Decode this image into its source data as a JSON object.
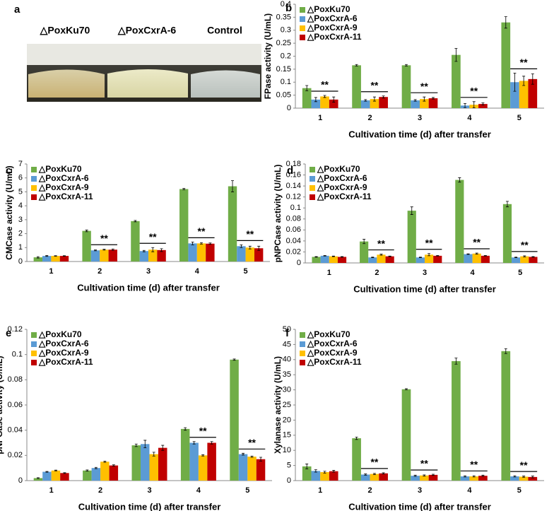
{
  "panel_a": {
    "panel": "a",
    "labels": [
      "△PoxKu70",
      "△PoxCxrA-6",
      "Control"
    ]
  },
  "chart_data": [
    {
      "type": "bar",
      "panel": "b",
      "y_label": "FPase activity (U/mL)",
      "x_label": "Cultivation time (d) after transfer",
      "categories": [
        "1",
        "2",
        "3",
        "4",
        "5"
      ],
      "ylim": [
        0,
        0.4
      ],
      "yticks": [
        0,
        0.05,
        0.1,
        0.15,
        0.2,
        0.25,
        0.3,
        0.35,
        0.4
      ],
      "legend": "upper left",
      "series": [
        {
          "name": "△PoxKu70",
          "color": "#70ad47",
          "values": [
            0.077,
            0.165,
            0.165,
            0.205,
            0.33
          ],
          "errors": [
            0.01,
            0.003,
            0.003,
            0.025,
            0.022
          ]
        },
        {
          "name": "△PoxCxrA-6",
          "color": "#5b9bd5",
          "values": [
            0.033,
            0.03,
            0.03,
            0.01,
            0.1
          ],
          "errors": [
            0.008,
            0.003,
            0.003,
            0.008,
            0.035
          ]
        },
        {
          "name": "△PoxCxrA-9",
          "color": "#ffc000",
          "values": [
            0.045,
            0.035,
            0.035,
            0.013,
            0.105
          ],
          "errors": [
            0.004,
            0.008,
            0.008,
            0.012,
            0.018
          ]
        },
        {
          "name": "△PoxCxrA-11",
          "color": "#c00000",
          "values": [
            0.033,
            0.043,
            0.038,
            0.016,
            0.112
          ],
          "errors": [
            0.01,
            0.004,
            0.003,
            0.004,
            0.02
          ]
        }
      ],
      "significance": [
        "**",
        "**",
        "**",
        "**",
        "**"
      ]
    },
    {
      "type": "bar",
      "panel": "c",
      "y_label": "CMCase activity (U/mL)",
      "x_label": "Cultivation time (d) after transfer",
      "categories": [
        "1",
        "2",
        "3",
        "4",
        "5"
      ],
      "ylim": [
        0,
        7
      ],
      "yticks": [
        0,
        1,
        2,
        3,
        4,
        5,
        6,
        7
      ],
      "legend": "upper left",
      "series": [
        {
          "name": "△PoxKu70",
          "color": "#70ad47",
          "values": [
            0.3,
            2.2,
            2.9,
            5.2,
            5.4
          ],
          "errors": [
            0.05,
            0.06,
            0.05,
            0.05,
            0.4
          ]
        },
        {
          "name": "△PoxCxrA-6",
          "color": "#5b9bd5",
          "values": [
            0.4,
            0.8,
            0.75,
            1.3,
            1.1
          ],
          "errors": [
            0.03,
            0.03,
            0.05,
            0.1,
            0.1
          ]
        },
        {
          "name": "△PoxCxrA-9",
          "color": "#ffc000",
          "values": [
            0.4,
            0.85,
            0.85,
            1.3,
            1.0
          ],
          "errors": [
            0.02,
            0.03,
            0.15,
            0.05,
            0.1
          ]
        },
        {
          "name": "△PoxCxrA-11",
          "color": "#c00000",
          "values": [
            0.4,
            0.85,
            0.82,
            1.28,
            0.95
          ],
          "errors": [
            0.02,
            0.05,
            0.1,
            0.05,
            0.15
          ]
        }
      ],
      "significance": [
        null,
        "**",
        "**",
        "**",
        "**"
      ]
    },
    {
      "type": "bar",
      "panel": "d",
      "y_label": "pNPCase activity (U/mL)",
      "x_label": "Cultivation time (d) after transfer",
      "categories": [
        "1",
        "2",
        "3",
        "4",
        "5"
      ],
      "ylim": [
        0,
        0.18
      ],
      "yticks": [
        0,
        0.02,
        0.04,
        0.06,
        0.08,
        0.1,
        0.12,
        0.14,
        0.16,
        0.18
      ],
      "legend": "upper left",
      "series": [
        {
          "name": "△PoxKu70",
          "color": "#70ad47",
          "values": [
            0.011,
            0.039,
            0.095,
            0.151,
            0.107
          ],
          "errors": [
            0.0005,
            0.004,
            0.007,
            0.004,
            0.005
          ]
        },
        {
          "name": "△PoxCxrA-6",
          "color": "#5b9bd5",
          "values": [
            0.013,
            0.01,
            0.01,
            0.016,
            0.01
          ],
          "errors": [
            0.0005,
            0.0005,
            0.0005,
            0.0005,
            0.0005
          ]
        },
        {
          "name": "△PoxCxrA-9",
          "color": "#ffc000",
          "values": [
            0.012,
            0.015,
            0.015,
            0.017,
            0.012
          ],
          "errors": [
            0.0005,
            0.001,
            0.002,
            0.001,
            0.001
          ]
        },
        {
          "name": "△PoxCxrA-11",
          "color": "#c00000",
          "values": [
            0.011,
            0.012,
            0.013,
            0.013,
            0.011
          ],
          "errors": [
            0.0005,
            0.0005,
            0.0005,
            0.0005,
            0.0005
          ]
        }
      ],
      "significance": [
        null,
        "**",
        "**",
        "**",
        "**"
      ]
    },
    {
      "type": "bar",
      "panel": "e",
      "y_label": "pNPGase activity (U/mL)",
      "x_label": "Cultivation time (d) after transfer",
      "categories": [
        "1",
        "2",
        "3",
        "4",
        "5"
      ],
      "ylim": [
        0,
        0.12
      ],
      "yticks": [
        0,
        0.02,
        0.04,
        0.06,
        0.08,
        0.1,
        0.12
      ],
      "legend": "upper left",
      "series": [
        {
          "name": "△PoxKu70",
          "color": "#70ad47",
          "values": [
            0.002,
            0.008,
            0.028,
            0.041,
            0.096
          ],
          "errors": [
            0.0003,
            0.0005,
            0.001,
            0.001,
            0.0005
          ]
        },
        {
          "name": "△PoxCxrA-6",
          "color": "#5b9bd5",
          "values": [
            0.007,
            0.01,
            0.029,
            0.03,
            0.021
          ],
          "errors": [
            0.0003,
            0.0005,
            0.003,
            0.001,
            0.0007
          ]
        },
        {
          "name": "△PoxCxrA-9",
          "color": "#ffc000",
          "values": [
            0.008,
            0.015,
            0.021,
            0.02,
            0.019
          ],
          "errors": [
            0.0003,
            0.0005,
            0.0015,
            0.0005,
            0.0005
          ]
        },
        {
          "name": "△PoxCxrA-11",
          "color": "#c00000",
          "values": [
            0.006,
            0.012,
            0.026,
            0.03,
            0.017
          ],
          "errors": [
            0.0003,
            0.0005,
            0.002,
            0.001,
            0.0015
          ]
        }
      ],
      "significance": [
        null,
        null,
        null,
        "**",
        "**"
      ]
    },
    {
      "type": "bar",
      "panel": "f",
      "y_label": "Xylanase activity (U/mL)",
      "x_label": "Cultivation time (d) after transfer",
      "categories": [
        "1",
        "2",
        "3",
        "4",
        "5"
      ],
      "ylim": [
        0,
        50
      ],
      "yticks": [
        0,
        5,
        10,
        15,
        20,
        25,
        30,
        35,
        40,
        45,
        50
      ],
      "legend": "upper left",
      "series": [
        {
          "name": "△PoxKu70",
          "color": "#70ad47",
          "values": [
            4.7,
            14,
            30.2,
            39.5,
            42.8
          ],
          "errors": [
            0.8,
            0.4,
            0.2,
            1,
            0.8
          ]
        },
        {
          "name": "△PoxCxrA-6",
          "color": "#5b9bd5",
          "values": [
            3.2,
            2,
            1.6,
            1.4,
            1.4
          ],
          "errors": [
            0.4,
            0.2,
            0.2,
            0.2,
            0.2
          ]
        },
        {
          "name": "△PoxCxrA-9",
          "color": "#ffc000",
          "values": [
            2.8,
            2.2,
            1.7,
            1.4,
            1.3
          ],
          "errors": [
            0.3,
            0.2,
            0.2,
            0.2,
            0.2
          ]
        },
        {
          "name": "△PoxCxrA-11",
          "color": "#c00000",
          "values": [
            3.1,
            2.4,
            1.9,
            1.6,
            1.2
          ],
          "errors": [
            0.3,
            0.2,
            0.2,
            0.2,
            0.3
          ]
        }
      ],
      "significance": [
        null,
        "**",
        "**",
        "**",
        "**"
      ]
    }
  ]
}
